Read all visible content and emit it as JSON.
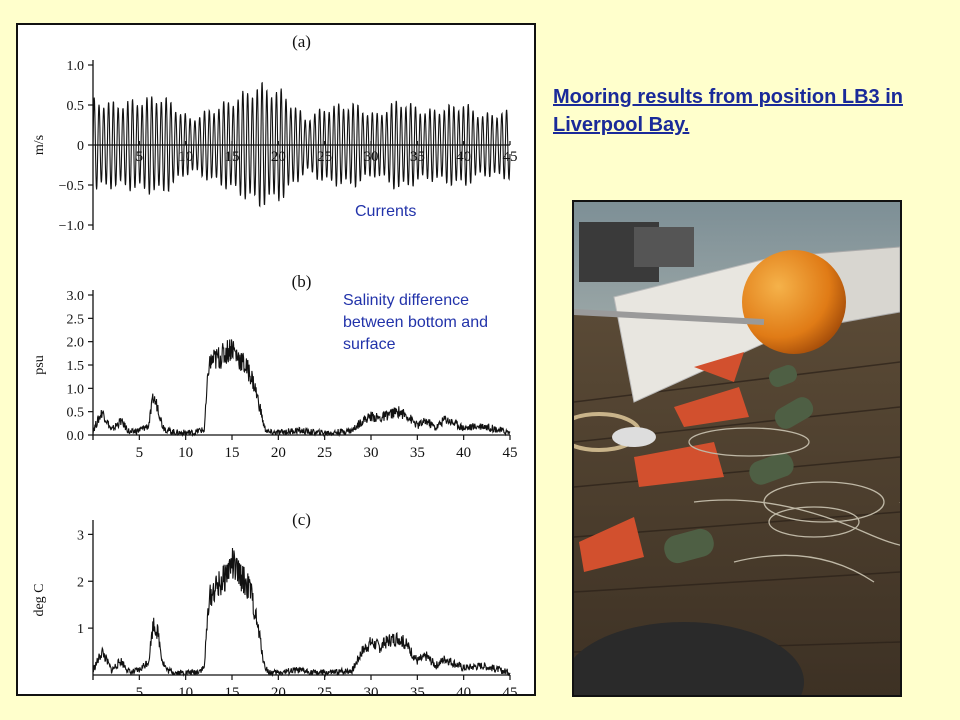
{
  "title_link": "Mooring results from position LB3 in Liverpool Bay.",
  "annotations": {
    "currents": "Currents",
    "salinity": "Salinity difference between bottom and surface"
  },
  "chart_data": [
    {
      "type": "line",
      "panel": "(a)",
      "ylabel": "m/s",
      "xlim": [
        0,
        45
      ],
      "ylim": [
        -1.0,
        1.0
      ],
      "yticks": [
        "1.0",
        "0.5",
        "0",
        "−0.5",
        "−1.0"
      ],
      "ytick_values": [
        1.0,
        0.5,
        0,
        -0.5,
        -1.0
      ],
      "xticks": [
        "5",
        "10",
        "15",
        "20",
        "25",
        "30",
        "35",
        "40",
        "45"
      ],
      "envelope": {
        "x": [
          0,
          2.5,
          7.5,
          10.5,
          15,
          18,
          20.5,
          23,
          25,
          28,
          30.5,
          33,
          36,
          40,
          42,
          45
        ],
        "y": [
          0.6,
          0.55,
          0.65,
          0.35,
          0.6,
          0.8,
          0.7,
          0.35,
          0.5,
          0.55,
          0.4,
          0.6,
          0.45,
          0.55,
          0.4,
          0.45
        ]
      }
    },
    {
      "type": "line",
      "panel": "(b)",
      "ylabel": "psu",
      "xlim": [
        0,
        45
      ],
      "ylim": [
        0,
        3.0
      ],
      "yticks": [
        "3.0",
        "2.5",
        "2.0",
        "1.5",
        "1.0",
        "0.5",
        "0.0"
      ],
      "ytick_values": [
        3.0,
        2.5,
        2.0,
        1.5,
        1.0,
        0.5,
        0.0
      ],
      "xticks": [
        "5",
        "10",
        "15",
        "20",
        "25",
        "30",
        "35",
        "40",
        "45"
      ],
      "x": [
        0,
        1,
        2,
        3,
        4,
        5,
        6,
        6.5,
        7,
        7.5,
        8,
        9,
        10,
        11,
        11.5,
        12,
        12.5,
        13,
        14,
        15,
        15.5,
        16,
        17,
        17.5,
        18,
        18.5,
        19,
        20,
        22,
        24,
        26,
        28,
        29,
        30,
        31,
        32,
        33,
        34,
        35,
        36,
        37,
        38,
        40,
        42,
        44,
        45
      ],
      "y": [
        0.1,
        0.5,
        0.1,
        0.3,
        0.05,
        0.1,
        0.2,
        0.8,
        0.6,
        0.2,
        0.1,
        0.05,
        0.05,
        0.05,
        0.1,
        0.1,
        1.5,
        1.6,
        1.7,
        1.9,
        1.7,
        1.6,
        1.3,
        1.0,
        0.6,
        0.15,
        0.05,
        0.05,
        0.1,
        0.05,
        0.05,
        0.1,
        0.3,
        0.4,
        0.35,
        0.45,
        0.5,
        0.4,
        0.2,
        0.3,
        0.15,
        0.35,
        0.15,
        0.2,
        0.1,
        0.05
      ]
    },
    {
      "type": "line",
      "panel": "(c)",
      "ylabel": "deg  C",
      "xlim": [
        0,
        45
      ],
      "ylim": [
        0,
        3.2
      ],
      "yticks": [
        "3",
        "2",
        "1"
      ],
      "ytick_values": [
        3,
        2,
        1
      ],
      "xticks": [
        "5",
        "10",
        "15",
        "20",
        "25",
        "30",
        "35",
        "40",
        "45"
      ],
      "x": [
        0,
        1,
        2,
        3,
        4,
        5,
        6,
        6.5,
        7,
        7.5,
        8,
        9,
        10,
        11,
        11.5,
        12,
        12.5,
        13,
        14,
        15,
        15.5,
        16,
        17,
        17.5,
        18,
        18.5,
        19,
        20,
        22,
        24,
        26,
        28,
        29,
        30,
        31,
        32,
        33,
        34,
        35,
        36,
        37,
        38,
        40,
        42,
        44,
        45
      ],
      "y": [
        0.1,
        0.5,
        0.1,
        0.3,
        0.05,
        0.1,
        0.3,
        1.1,
        0.9,
        0.3,
        0.1,
        0.05,
        0.05,
        0.05,
        0.1,
        0.15,
        1.6,
        1.8,
        2.0,
        2.4,
        2.2,
        2.1,
        1.8,
        1.3,
        0.8,
        0.2,
        0.05,
        0.05,
        0.1,
        0.05,
        0.05,
        0.1,
        0.5,
        0.7,
        0.6,
        0.75,
        0.8,
        0.6,
        0.3,
        0.4,
        0.2,
        0.35,
        0.15,
        0.2,
        0.1,
        0.05
      ]
    }
  ]
}
